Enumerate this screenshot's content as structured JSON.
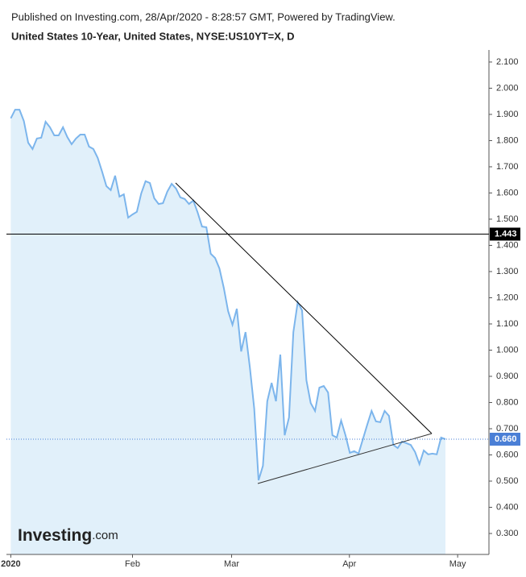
{
  "header": {
    "published": "Published on Investing.com, 28/Apr/2020 - 8:28:57 GMT, Powered by TradingView."
  },
  "logo": {
    "brand": "Investing",
    "suffix": ".com"
  },
  "chart_data": {
    "type": "area",
    "title": "United States 10-Year, United States, NYSE:US10YT=X, D",
    "x": [
      0,
      1,
      2,
      3,
      4,
      5,
      6,
      7,
      8,
      9,
      10,
      11,
      12,
      13,
      14,
      15,
      16,
      17,
      18,
      19,
      20,
      21,
      22,
      23,
      24,
      25,
      26,
      27,
      28,
      29,
      30,
      31,
      32,
      33,
      34,
      35,
      36,
      37,
      38,
      39,
      40,
      41,
      42,
      43,
      44,
      45,
      46,
      47,
      48,
      49,
      50,
      51,
      52,
      53,
      54,
      55,
      56,
      57,
      58,
      59,
      60,
      61,
      62,
      63,
      64,
      65,
      66,
      67,
      68,
      69,
      70,
      71,
      72,
      73,
      74,
      75,
      76,
      77,
      78,
      79,
      80,
      81,
      82,
      83,
      84,
      85,
      86,
      87,
      88,
      89,
      90,
      91,
      92,
      93,
      94,
      95,
      96,
      97,
      98,
      99,
      100
    ],
    "series": [
      {
        "name": "US10YT",
        "color": "#7cb5ec",
        "values": [
          1.885,
          1.918,
          1.918,
          1.875,
          1.792,
          1.768,
          1.808,
          1.811,
          1.872,
          1.851,
          1.82,
          1.82,
          1.851,
          1.814,
          1.786,
          1.808,
          1.823,
          1.823,
          1.777,
          1.768,
          1.734,
          1.682,
          1.626,
          1.611,
          1.666,
          1.586,
          1.595,
          1.506,
          1.518,
          1.528,
          1.598,
          1.645,
          1.638,
          1.58,
          1.558,
          1.561,
          1.605,
          1.635,
          1.617,
          1.583,
          1.577,
          1.558,
          1.571,
          1.525,
          1.472,
          1.469,
          1.368,
          1.352,
          1.312,
          1.238,
          1.149,
          1.097,
          1.158,
          0.995,
          1.069,
          0.934,
          0.777,
          0.503,
          0.558,
          0.805,
          0.875,
          0.805,
          0.983,
          0.675,
          0.743,
          1.069,
          1.183,
          1.152,
          0.885,
          0.798,
          0.768,
          0.857,
          0.863,
          0.838,
          0.675,
          0.666,
          0.731,
          0.675,
          0.608,
          0.614,
          0.605,
          0.66,
          0.715,
          0.768,
          0.728,
          0.725,
          0.768,
          0.749,
          0.638,
          0.626,
          0.651,
          0.645,
          0.638,
          0.611,
          0.565,
          0.617,
          0.602,
          0.605,
          0.602,
          0.666,
          0.66
        ]
      }
    ],
    "xlim": [
      -1,
      110
    ],
    "xticks": [
      {
        "value": 0,
        "label": "2020"
      },
      {
        "value": 28,
        "label": "Feb"
      },
      {
        "value": 50.8,
        "label": "Mar"
      },
      {
        "value": 77.9,
        "label": "Apr"
      },
      {
        "value": 102.8,
        "label": "May"
      }
    ],
    "ylim": [
      0.22,
      2.146
    ],
    "yticks": [
      {
        "value": 0.3,
        "label": "0.300"
      },
      {
        "value": 0.4,
        "label": "0.400"
      },
      {
        "value": 0.5,
        "label": "0.500"
      },
      {
        "value": 0.6,
        "label": "0.600"
      },
      {
        "value": 0.7,
        "label": "0.700"
      },
      {
        "value": 0.8,
        "label": "0.800"
      },
      {
        "value": 0.9,
        "label": "0.900"
      },
      {
        "value": 1.0,
        "label": "1.000"
      },
      {
        "value": 1.1,
        "label": "1.100"
      },
      {
        "value": 1.2,
        "label": "1.200"
      },
      {
        "value": 1.3,
        "label": "1.300"
      },
      {
        "value": 1.4,
        "label": "1.400"
      },
      {
        "value": 1.5,
        "label": "1.500"
      },
      {
        "value": 1.6,
        "label": "1.600"
      },
      {
        "value": 1.7,
        "label": "1.700"
      },
      {
        "value": 1.8,
        "label": "1.800"
      },
      {
        "value": 1.9,
        "label": "1.900"
      },
      {
        "value": 2.0,
        "label": "2.000"
      },
      {
        "value": 2.1,
        "label": "2.100"
      }
    ],
    "hline": {
      "value": 1.443,
      "label": "1.443"
    },
    "last_price": {
      "value": 0.66,
      "label": "0.660",
      "color": "#4a7fd6"
    },
    "fill": "#e1f0fa"
  }
}
